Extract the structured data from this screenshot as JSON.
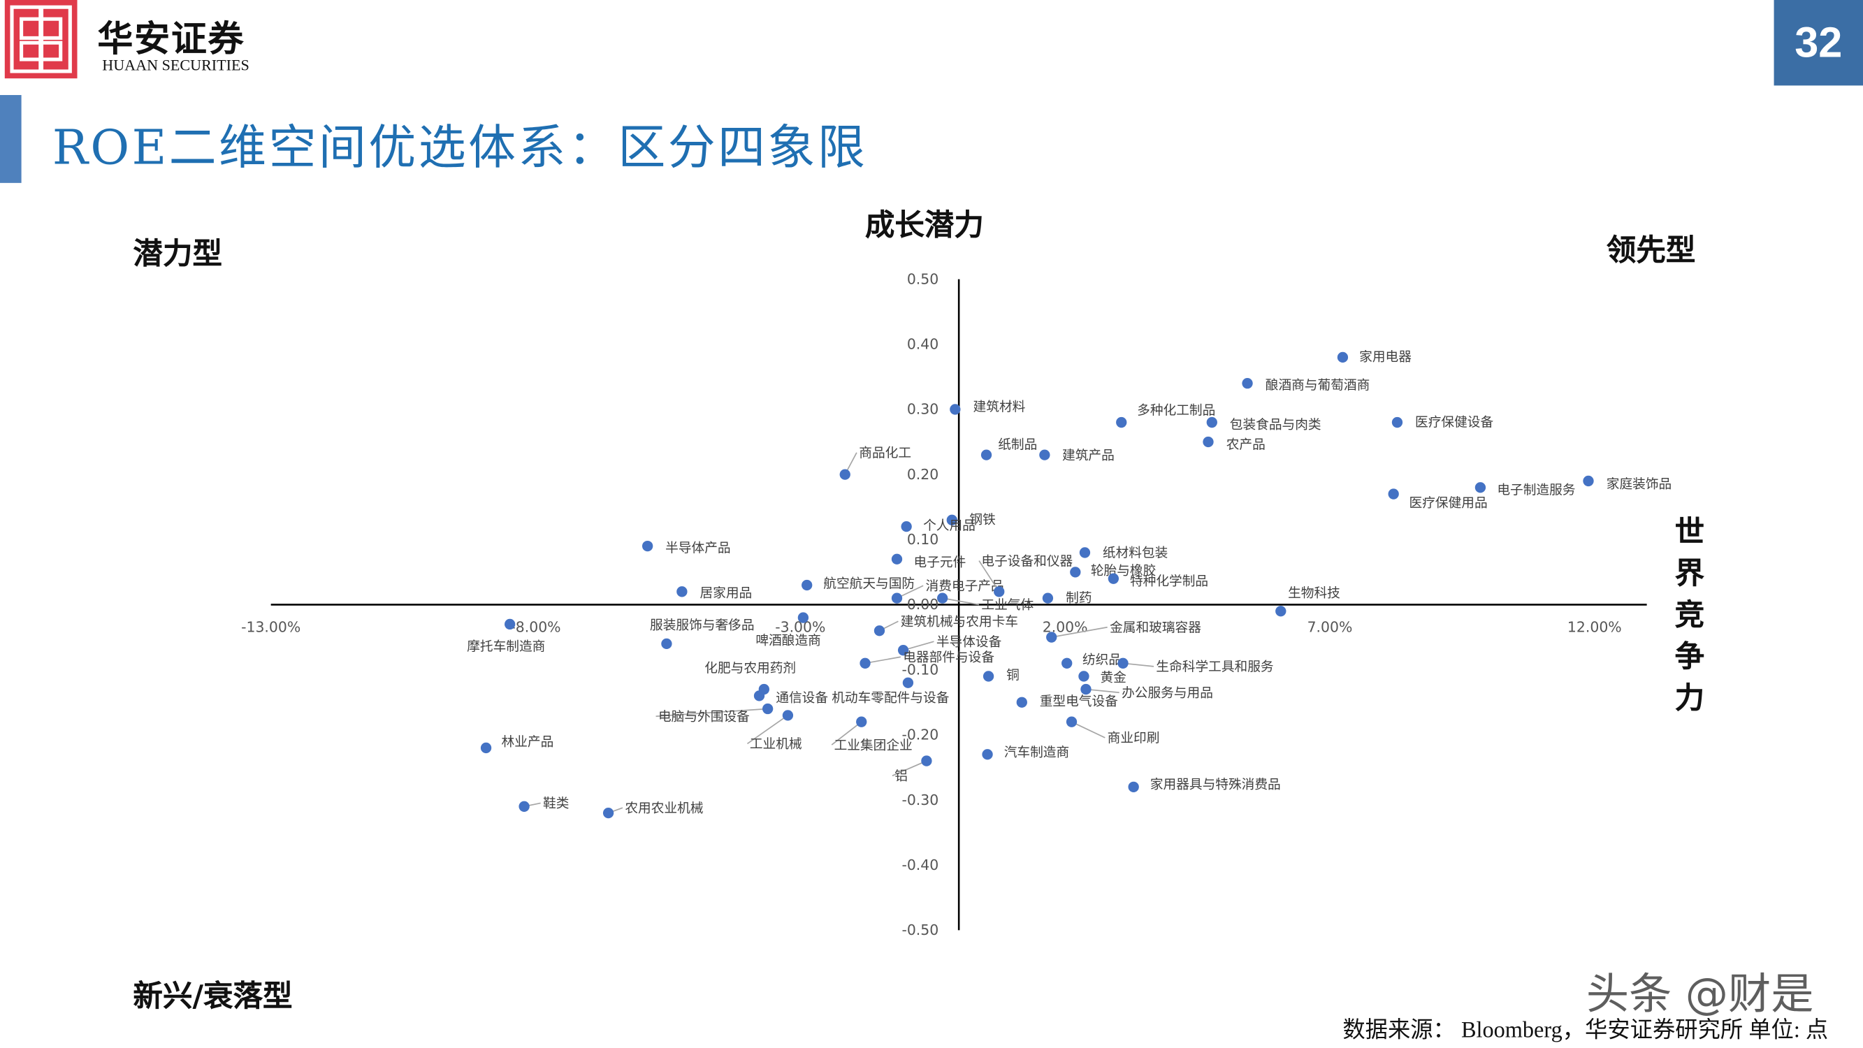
{
  "header": {
    "logo_cn": "华安证券",
    "logo_en": "HUAAN SECURITIES",
    "page_number": "32",
    "title": "ROE二维空间优选体系：区分四象限",
    "accent_color": "#1f6fb2"
  },
  "quadrants": {
    "top_left": "潜力型",
    "top_center": "成长潜力",
    "top_right": "领先型",
    "right_axis": "世界竞争力",
    "bottom_left": "新兴/衰落型"
  },
  "footer": {
    "source": "数据来源： Bloomberg，华安证券研究所 单位: 点",
    "watermark": "头条 @财是"
  },
  "chart_data": {
    "type": "scatter",
    "title": "",
    "xlabel": "",
    "ylabel": "",
    "xlim": [
      -0.13,
      0.12
    ],
    "ylim": [
      -0.5,
      0.5
    ],
    "x_ticks": [
      "-13.00%",
      "-8.00%",
      "-3.00%",
      "2.00%",
      "7.00%",
      "12.00%"
    ],
    "y_ticks": [
      "0.50",
      "0.40",
      "0.30",
      "0.20",
      "0.10",
      "0.00",
      "-0.10",
      "-0.20",
      "-0.30",
      "-0.40",
      "-0.50"
    ],
    "grid": false,
    "marker_color": "#4472c4",
    "points": [
      {
        "name": "家用电器",
        "x": 7.25,
        "y": 0.38
      },
      {
        "name": "酿酒商与葡萄酒商",
        "x": 5.45,
        "y": 0.34
      },
      {
        "name": "建筑材料",
        "x": -0.07,
        "y": 0.3
      },
      {
        "name": "多种化工制品",
        "x": 3.07,
        "y": 0.28
      },
      {
        "name": "包装食品与肉类",
        "x": 4.78,
        "y": 0.28
      },
      {
        "name": "医疗保健设备",
        "x": 8.28,
        "y": 0.28
      },
      {
        "name": "农产品",
        "x": 4.71,
        "y": 0.25
      },
      {
        "name": "纸制品",
        "x": 0.52,
        "y": 0.23
      },
      {
        "name": "建筑产品",
        "x": 1.62,
        "y": 0.23
      },
      {
        "name": "商品化工",
        "x": -2.15,
        "y": 0.2
      },
      {
        "name": "医疗保健用品",
        "x": 8.21,
        "y": 0.17
      },
      {
        "name": "电子制造服务",
        "x": 9.85,
        "y": 0.18
      },
      {
        "name": "家庭装饰品",
        "x": 11.89,
        "y": 0.19
      },
      {
        "name": "钢铁",
        "x": -0.13,
        "y": 0.13
      },
      {
        "name": "个人用品",
        "x": -0.99,
        "y": 0.12
      },
      {
        "name": "半导体产品",
        "x": -5.88,
        "y": 0.09
      },
      {
        "name": "纸材料包装",
        "x": 2.38,
        "y": 0.08
      },
      {
        "name": "电子元件",
        "x": -1.17,
        "y": 0.07
      },
      {
        "name": "轮胎与橡胶",
        "x": 2.2,
        "y": 0.05
      },
      {
        "name": "航空航天与国防",
        "x": -2.87,
        "y": 0.03
      },
      {
        "name": "特种化学制品",
        "x": 2.92,
        "y": 0.04
      },
      {
        "name": "居家用品",
        "x": -5.23,
        "y": 0.02
      },
      {
        "name": "消费电子产品",
        "x": -1.17,
        "y": 0.01
      },
      {
        "name": "电子设备和仪器",
        "x": 0.76,
        "y": 0.02
      },
      {
        "name": "工业气体",
        "x": -0.31,
        "y": 0.01
      },
      {
        "name": "制药",
        "x": 1.68,
        "y": 0.01
      },
      {
        "name": "生物科技",
        "x": 6.08,
        "y": -0.01
      },
      {
        "name": "服装服饰与奢侈品",
        "x": -5.52,
        "y": -0.06
      },
      {
        "name": "啤酒酿造商",
        "x": -2.94,
        "y": -0.02
      },
      {
        "name": "摩托车制造商",
        "x": -8.48,
        "y": -0.03
      },
      {
        "name": "建筑机械与农用卡车",
        "x": -1.5,
        "y": -0.04
      },
      {
        "name": "半导体设备",
        "x": -1.05,
        "y": -0.07
      },
      {
        "name": "金属和玻璃容器",
        "x": 1.75,
        "y": -0.05
      },
      {
        "name": "电器部件与设备",
        "x": -1.77,
        "y": -0.09
      },
      {
        "name": "纺织品",
        "x": 2.04,
        "y": -0.09
      },
      {
        "name": "生命科学工具和服务",
        "x": 3.1,
        "y": -0.09
      },
      {
        "name": "铜",
        "x": 0.56,
        "y": -0.11
      },
      {
        "name": "黄金",
        "x": 2.36,
        "y": -0.11
      },
      {
        "name": "机动车零配件与设备",
        "x": -0.96,
        "y": -0.12
      },
      {
        "name": "化肥与农用药剂",
        "x": -3.68,
        "y": -0.13
      },
      {
        "name": "通信设备",
        "x": -3.77,
        "y": -0.14
      },
      {
        "name": "办公服务与用品",
        "x": 2.4,
        "y": -0.13
      },
      {
        "name": "重型电气设备",
        "x": 1.19,
        "y": -0.15
      },
      {
        "name": "电脑与外围设备",
        "x": -3.61,
        "y": -0.16
      },
      {
        "name": "工业机械",
        "x": -3.23,
        "y": -0.17
      },
      {
        "name": "工业集团企业",
        "x": -1.84,
        "y": -0.18
      },
      {
        "name": "商业印刷",
        "x": 2.13,
        "y": -0.18
      },
      {
        "name": "林业产品",
        "x": -8.93,
        "y": -0.22
      },
      {
        "name": "汽车制造商",
        "x": 0.54,
        "y": -0.23
      },
      {
        "name": "铝",
        "x": -0.61,
        "y": -0.24
      },
      {
        "name": "家用器具与特殊消费品",
        "x": 3.3,
        "y": -0.28
      },
      {
        "name": "鞋类",
        "x": -8.21,
        "y": -0.31
      },
      {
        "name": "农用农业机械",
        "x": -6.62,
        "y": -0.32
      }
    ]
  }
}
